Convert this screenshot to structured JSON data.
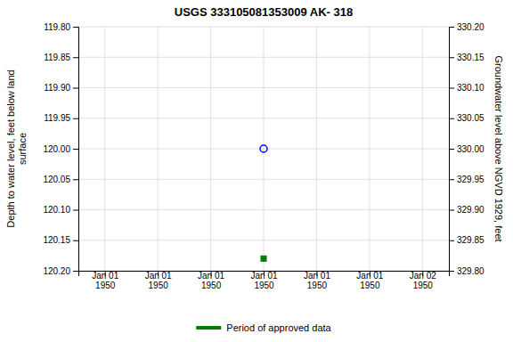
{
  "chart_data": {
    "type": "scatter",
    "title": "USGS 333105081353009 AK- 318",
    "ylabel": "Depth to water level, feet below land\nsurface",
    "y2label": "Groundwater level above NGVD 1929, feet",
    "categories": [
      "Jan 01\n1950",
      "Jan 01\n1950",
      "Jan 01\n1950",
      "Jan 01\n1950",
      "Jan 01\n1950",
      "Jan 01\n1950",
      "Jan 02\n1950"
    ],
    "series": [
      {
        "color": "blue",
        "marker": "circle-open",
        "values": [
          null,
          null,
          null,
          120.0,
          null,
          null,
          null
        ]
      },
      {
        "name": "Period of approved data",
        "color": "green",
        "marker": "square",
        "values": [
          null,
          null,
          null,
          120.18,
          null,
          null,
          null
        ]
      }
    ],
    "ylim": [
      120.2,
      119.8
    ],
    "yticks": [
      {
        "value": 119.8,
        "label": "119.80"
      },
      119.85,
      {
        "value": 119.9,
        "label": "119.90"
      },
      119.95,
      {
        "value": 120.0,
        "label": "120.00"
      },
      120.05,
      {
        "value": 120.1,
        "label": "120.10"
      },
      120.15,
      {
        "value": 120.2,
        "label": "120.20"
      }
    ],
    "y2lim": [
      329.8,
      330.2
    ],
    "y2ticks": [
      {
        "value": 329.8,
        "label": "329.80"
      },
      329.85,
      {
        "value": 329.9,
        "label": "329.90"
      },
      329.95,
      {
        "value": 330.0,
        "label": "330.00"
      },
      330.05,
      {
        "value": 330.1,
        "label": "330.10"
      },
      330.15,
      {
        "value": 330.2,
        "label": "330.20"
      }
    ],
    "grid": true,
    "legend": "bottom"
  }
}
